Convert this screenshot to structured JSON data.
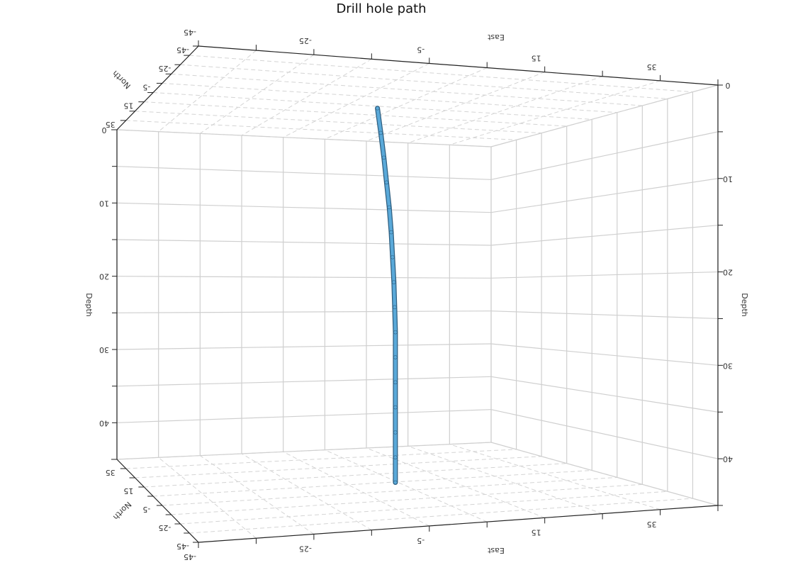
{
  "chart_data": {
    "type": "line3d",
    "title": "Drill hole path",
    "x_label": "East",
    "y_label": "North",
    "z_label": "Depth",
    "xlim": [
      -45,
      45
    ],
    "ylim": [
      -45,
      45
    ],
    "zlim": [
      0,
      45
    ],
    "xticks": [
      -45,
      -25,
      -5,
      15,
      35
    ],
    "yticks": [
      -45,
      -25,
      -5,
      15,
      35
    ],
    "zticks": [
      0,
      10,
      20,
      30,
      40
    ],
    "xminorticks": [
      -35,
      -15,
      5,
      25,
      45
    ],
    "yminorticks": [
      -35,
      -15,
      5,
      25,
      45
    ],
    "zminorticks": [
      5,
      15,
      25,
      35,
      45
    ],
    "grid": true,
    "series": [
      {
        "color": "#5aa9d9",
        "x": [
          1.8,
          2.3,
          2.8,
          3.2,
          3.6,
          3.9,
          4.1,
          4.3,
          4.4,
          4.5,
          4.5,
          4.5,
          4.5,
          4.5,
          4.5,
          4.5
        ],
        "y": [
          7.2,
          6.7,
          6.3,
          5.9,
          5.5,
          5.2,
          5.0,
          4.8,
          4.6,
          4.5,
          4.5,
          4.5,
          4.5,
          4.5,
          4.5,
          4.5
        ],
        "z": [
          0,
          3,
          6,
          9,
          12,
          15,
          18,
          21,
          24,
          27,
          30,
          33,
          36,
          39,
          42,
          45
        ]
      }
    ]
  }
}
